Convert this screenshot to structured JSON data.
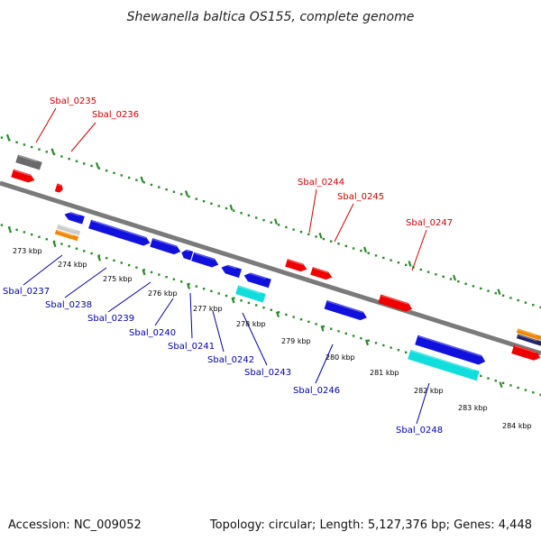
{
  "title": "Shewanella baltica OS155, complete genome",
  "footer": {
    "accession": "Accession: NC_009052",
    "summary": "Topology: circular; Length: 5,127,376 bp; Genes: 4,448"
  },
  "colors": {
    "forward_label": "#cc0000",
    "reverse_label": "#0000aa",
    "backbone": "#808080",
    "tick": "#2a8a2a"
  },
  "tick_labels": [
    "273 kbp",
    "274 kbp",
    "275 kbp",
    "276 kbp",
    "277 kbp",
    "278 kbp",
    "279 kbp",
    "280 kbp",
    "281 kbp",
    "282 kbp",
    "283 kbp",
    "284 kbp"
  ],
  "forward_genes": [
    {
      "name": "Sbal_0235"
    },
    {
      "name": "Sbal_0236"
    },
    {
      "name": "Sbal_0244"
    },
    {
      "name": "Sbal_0245"
    },
    {
      "name": "Sbal_0247"
    }
  ],
  "reverse_genes": [
    {
      "name": "Sbal_0237"
    },
    {
      "name": "Sbal_0238"
    },
    {
      "name": "Sbal_0239"
    },
    {
      "name": "Sbal_0240"
    },
    {
      "name": "Sbal_0241"
    },
    {
      "name": "Sbal_0242"
    },
    {
      "name": "Sbal_0243"
    },
    {
      "name": "Sbal_0246"
    },
    {
      "name": "Sbal_0248"
    }
  ]
}
